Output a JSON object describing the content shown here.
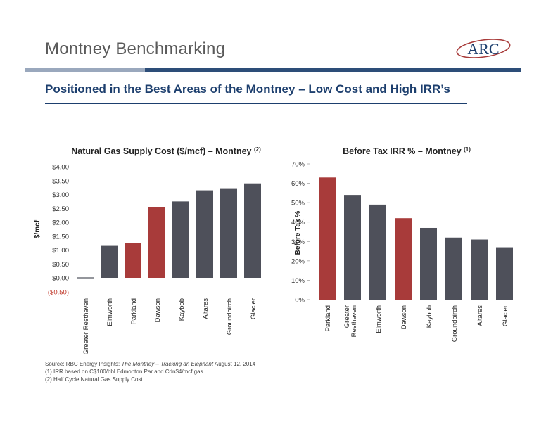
{
  "header": {
    "title": "Montney Benchmarking",
    "logo_text": "ARC",
    "subtitle": "Positioned in the Best Areas of the Montney – Low Cost and High IRR’s"
  },
  "colors": {
    "highlight": "#a83b3a",
    "bar": "#4e505a",
    "navy": "#1d3f6e"
  },
  "chart_data": [
    {
      "type": "bar",
      "title": "Natural Gas Supply Cost ($/mcf) – Montney",
      "title_superscript": "(2)",
      "ylabel": "$/mcf",
      "ylim": [
        -0.5,
        4.0
      ],
      "yticks": [
        "($0.50)",
        "$0.00",
        "$0.50",
        "$1.00",
        "$1.50",
        "$2.00",
        "$2.50",
        "$3.00",
        "$3.50",
        "$4.00"
      ],
      "ytick_values": [
        -0.5,
        0,
        0.5,
        1.0,
        1.5,
        2.0,
        2.5,
        3.0,
        3.5,
        4.0
      ],
      "categories": [
        "Greater Resthaven",
        "Elmworth",
        "Parkland",
        "Dawson",
        "Kaybob",
        "Altares",
        "Groundbirch",
        "Glacier"
      ],
      "values": [
        0.0,
        1.15,
        1.25,
        2.55,
        2.75,
        3.15,
        3.2,
        3.4
      ],
      "highlighted": [
        "Parkland",
        "Dawson"
      ]
    },
    {
      "type": "bar",
      "title": "Before Tax IRR % – Montney",
      "title_superscript": "(1)",
      "ylabel": "Before Tax %",
      "ylim": [
        0,
        70
      ],
      "yticks": [
        "0%",
        "10%",
        "20%",
        "30%",
        "40%",
        "50%",
        "60%",
        "70%"
      ],
      "ytick_values": [
        0,
        10,
        20,
        30,
        40,
        50,
        60,
        70
      ],
      "categories": [
        "Parkland",
        "Greater Resthaven",
        "Elmworth",
        "Dawson",
        "Kaybob",
        "Groundbirch",
        "Altares",
        "Glacier"
      ],
      "values": [
        63,
        54,
        49,
        42,
        37,
        32,
        31,
        27
      ],
      "highlighted": [
        "Parkland",
        "Dawson"
      ]
    }
  ],
  "footnotes": {
    "source_prefix": "Source:  RBC Energy Insights: ",
    "source_title": "The Montney – Tracking an Elephant",
    "source_suffix": " August 12, 2014",
    "note1": "(1)  IRR based on C$100/bbl Edmonton Par and Cdn$4/mcf gas",
    "note2": "(2)  Half Cycle Natural Gas Supply Cost"
  }
}
